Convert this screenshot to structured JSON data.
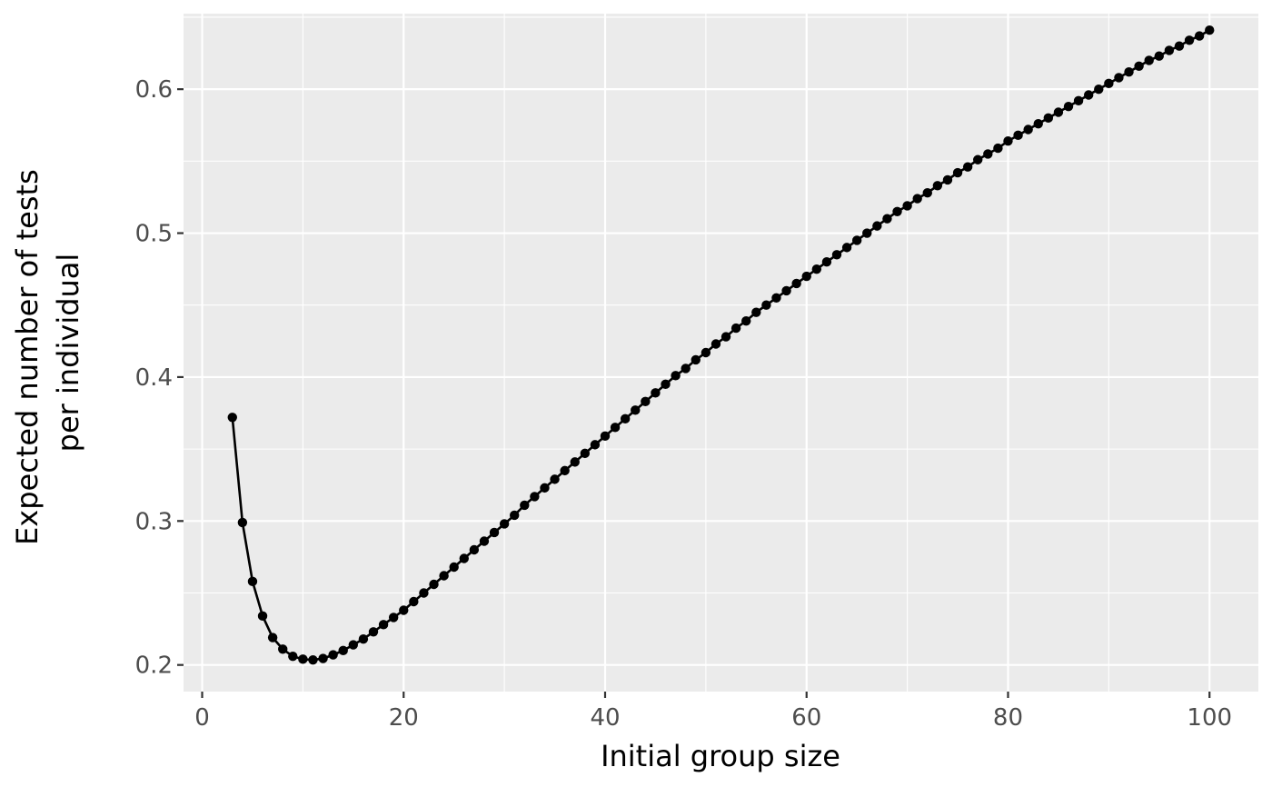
{
  "chart_data": {
    "type": "line",
    "title": "",
    "xlabel": "Initial group size",
    "ylabel_lines": [
      "Expected number of tests",
      "per individual"
    ],
    "xlim": [
      -1.85,
      104.85
    ],
    "ylim": [
      0.1815,
      0.6525
    ],
    "x_major_ticks": [
      0,
      20,
      40,
      60,
      80,
      100
    ],
    "x_minor_ticks": [
      10,
      30,
      50,
      70,
      90
    ],
    "y_major_ticks": [
      0.2,
      0.3,
      0.4,
      0.5,
      0.6
    ],
    "y_minor_ticks": [
      0.25,
      0.35,
      0.45,
      0.55,
      0.65
    ],
    "x_tick_labels": [
      "0",
      "20",
      "40",
      "60",
      "80",
      "100"
    ],
    "y_tick_labels": [
      "0.2",
      "0.3",
      "0.4",
      "0.5",
      "0.6"
    ],
    "grid": true,
    "legend": "none",
    "series": [
      {
        "color": "#000000",
        "markers": true,
        "x": [
          3,
          4,
          5,
          6,
          7,
          8,
          9,
          10,
          11,
          12,
          13,
          14,
          15,
          16,
          17,
          18,
          19,
          20,
          21,
          22,
          23,
          24,
          25,
          26,
          27,
          28,
          29,
          30,
          31,
          32,
          33,
          34,
          35,
          36,
          37,
          38,
          39,
          40,
          41,
          42,
          43,
          44,
          45,
          46,
          47,
          48,
          49,
          50,
          51,
          52,
          53,
          54,
          55,
          56,
          57,
          58,
          59,
          60,
          61,
          62,
          63,
          64,
          65,
          66,
          67,
          68,
          69,
          70,
          71,
          72,
          73,
          74,
          75,
          76,
          77,
          78,
          79,
          80,
          81,
          82,
          83,
          84,
          85,
          86,
          87,
          88,
          89,
          90,
          91,
          92,
          93,
          94,
          95,
          96,
          97,
          98,
          99,
          100
        ],
        "y": [
          0.372,
          0.299,
          0.258,
          0.234,
          0.219,
          0.211,
          0.206,
          0.204,
          0.2035,
          0.2045,
          0.207,
          0.21,
          0.214,
          0.218,
          0.223,
          0.228,
          0.233,
          0.238,
          0.244,
          0.25,
          0.256,
          0.262,
          0.268,
          0.274,
          0.28,
          0.286,
          0.292,
          0.298,
          0.304,
          0.311,
          0.317,
          0.323,
          0.329,
          0.335,
          0.341,
          0.347,
          0.353,
          0.359,
          0.365,
          0.371,
          0.377,
          0.383,
          0.389,
          0.395,
          0.401,
          0.406,
          0.412,
          0.417,
          0.423,
          0.428,
          0.434,
          0.439,
          0.445,
          0.45,
          0.455,
          0.46,
          0.465,
          0.47,
          0.475,
          0.48,
          0.485,
          0.49,
          0.495,
          0.5,
          0.505,
          0.51,
          0.515,
          0.519,
          0.524,
          0.528,
          0.533,
          0.537,
          0.542,
          0.546,
          0.551,
          0.555,
          0.559,
          0.564,
          0.568,
          0.572,
          0.576,
          0.58,
          0.584,
          0.588,
          0.592,
          0.596,
          0.6,
          0.604,
          0.608,
          0.612,
          0.616,
          0.62,
          0.623,
          0.627,
          0.63,
          0.634,
          0.637,
          0.641
        ]
      }
    ]
  }
}
